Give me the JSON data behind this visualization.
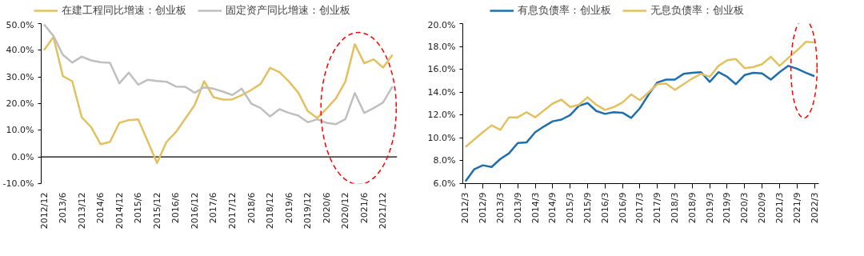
{
  "chart_data": [
    {
      "type": "line",
      "legend": "top",
      "grid": false,
      "categories": [
        "2012/12",
        null,
        "2013/6",
        null,
        "2013/12",
        null,
        "2014/6",
        null,
        "2014/12",
        null,
        "2015/6",
        null,
        "2015/12",
        null,
        "2016/6",
        null,
        "2016/12",
        null,
        "2017/6",
        null,
        "2017/12",
        null,
        "2018/6",
        null,
        "2018/12",
        null,
        "2019/6",
        null,
        "2019/12",
        null,
        "2020/6",
        null,
        "2020/12",
        null,
        "2021/6",
        null,
        "2021/12",
        null
      ],
      "ylim": [
        -10,
        50
      ],
      "yticks": [
        {
          "value": -10,
          "label": "-10.0%"
        },
        {
          "value": 0,
          "label": "0.0%"
        },
        {
          "value": 10,
          "label": "10.0%"
        },
        {
          "value": 20,
          "label": "20.0%"
        },
        {
          "value": 30,
          "label": "30.0%"
        },
        {
          "value": 40,
          "label": "40.0%"
        },
        {
          "value": 50,
          "label": "50.0%"
        }
      ],
      "ref_lines": [
        {
          "axis": "y",
          "value": 0,
          "color": "#000000"
        }
      ],
      "series": [
        {
          "name": "在建工程同比增速：创业板",
          "color": "#e3c160",
          "values": [
            40,
            45,
            30.3,
            28.4,
            14.9,
            11.2,
            4.8,
            5.6,
            12.8,
            13.8,
            14.1,
            6,
            -2.3,
            5.6,
            9.3,
            14.4,
            19.5,
            28.4,
            22.4,
            21.5,
            21.6,
            23.2,
            25.1,
            27.4,
            33.4,
            31.8,
            28.3,
            24.1,
            17.2,
            14.6,
            18.1,
            22.0,
            28.3,
            42.3,
            35.1,
            36.6,
            33.5,
            38.3
          ]
        },
        {
          "name": "固定资产同比增速：创业板",
          "color": "#bfbfbf",
          "values": [
            49.7,
            45.4,
            38.3,
            35.4,
            37.6,
            36.2,
            35.5,
            35.3,
            27.6,
            31.6,
            27.1,
            28.9,
            28.5,
            28.2,
            26.4,
            26.3,
            24.1,
            26.1,
            25.6,
            24.5,
            23.2,
            25.6,
            20.0,
            18.3,
            15.2,
            17.9,
            16.5,
            15.5,
            13.0,
            14.1,
            12.8,
            12.3,
            14.2,
            24.0,
            16.5,
            18.3,
            20.4,
            26.4
          ]
        }
      ]
    },
    {
      "type": "line",
      "legend": "top",
      "grid": false,
      "categories": [
        "2012/3",
        null,
        "2012/9",
        null,
        "2013/3",
        null,
        "2013/9",
        null,
        "2014/3",
        null,
        "2014/9",
        null,
        "2015/3",
        null,
        "2015/9",
        null,
        "2016/3",
        null,
        "2016/9",
        null,
        "2017/3",
        null,
        "2017/9",
        null,
        "2018/3",
        null,
        "2018/9",
        null,
        "2019/3",
        null,
        "2019/9",
        null,
        "2020/3",
        null,
        "2020/9",
        null,
        "2021/3",
        null,
        "2021/9",
        null,
        "2022/3"
      ],
      "ylim": [
        6,
        20
      ],
      "yticks": [
        {
          "value": 6,
          "label": "6.0%"
        },
        {
          "value": 8,
          "label": "8.0%"
        },
        {
          "value": 10,
          "label": "10.0%"
        },
        {
          "value": 12,
          "label": "12.0%"
        },
        {
          "value": 14,
          "label": "14.0%"
        },
        {
          "value": 16,
          "label": "16.0%"
        },
        {
          "value": 18,
          "label": "18.0%"
        },
        {
          "value": 20,
          "label": "20.0%"
        }
      ],
      "series": [
        {
          "name": "有息负债率：创业板",
          "color": "#1f6fad",
          "values": [
            6.2,
            7.25,
            7.6,
            7.45,
            8.15,
            8.65,
            9.55,
            9.6,
            10.5,
            11.0,
            11.45,
            11.6,
            12.0,
            12.8,
            13.05,
            12.35,
            12.1,
            12.25,
            12.2,
            11.75,
            12.6,
            13.8,
            14.85,
            15.1,
            15.1,
            15.6,
            15.7,
            15.75,
            14.9,
            15.75,
            15.35,
            14.7,
            15.5,
            15.7,
            15.65,
            15.1,
            15.75,
            16.3,
            16.05,
            15.7,
            15.4
          ]
        },
        {
          "name": "无息负债率：创业板",
          "color": "#e3c160",
          "values": [
            9.2,
            9.85,
            10.5,
            11.1,
            10.7,
            11.8,
            11.8,
            12.25,
            11.8,
            12.4,
            13.0,
            13.35,
            12.7,
            12.9,
            13.55,
            12.9,
            12.45,
            12.7,
            13.1,
            13.8,
            13.3,
            14.0,
            14.7,
            14.75,
            14.2,
            14.7,
            15.2,
            15.6,
            15.35,
            16.3,
            16.8,
            16.9,
            16.1,
            16.2,
            16.45,
            17.1,
            16.3,
            17.0,
            17.65,
            18.4,
            18.35
          ]
        }
      ]
    }
  ]
}
